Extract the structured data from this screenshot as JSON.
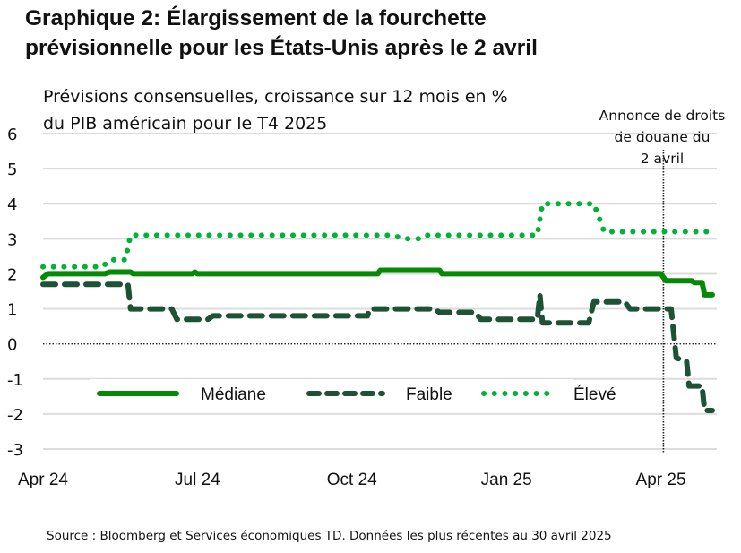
{
  "title_line1": "Graphique 2: Élargissement de la fourchette",
  "title_line2": "prévisionnelle pour les États-Unis après le 2 avril",
  "subtitle_line1": "Prévisions consensuelles, croissance sur 12 mois en %",
  "subtitle_line2": "du PIB américain pour le T4 2025",
  "annotation": [
    "Annonce de droits",
    "de douane du",
    "2 avril"
  ],
  "source": "Source : Bloomberg et Services économiques TD. Données les plus récentes au 30 avril 2025",
  "chart_data": {
    "type": "line",
    "title": "Graphique 2: Élargissement de la fourchette prévisionnelle pour les États-Unis après le 2 avril",
    "subtitle": "Prévisions consensuelles, croissance sur 12 mois en % du PIB américain pour le T4 2025",
    "xlabel": "",
    "ylabel": "",
    "ylim": [
      -3,
      6
    ],
    "yticks": [
      "6",
      "5",
      "4",
      "3",
      "2",
      "1",
      "0",
      "-1",
      "-2",
      "-3"
    ],
    "xlim_months_from_apr24": [
      0,
      13
    ],
    "xticks": [
      {
        "label": "Apr 24",
        "m": 0
      },
      {
        "label": "Jul 24",
        "m": 3
      },
      {
        "label": "Oct 24",
        "m": 6
      },
      {
        "label": "Jan 25",
        "m": 9
      },
      {
        "label": "Apr 25",
        "m": 12
      }
    ],
    "grid": true,
    "legend_position": "bottom-left inside plot",
    "vline": {
      "m": 12.05,
      "label": "Annonce de droits de douane du 2 avril"
    },
    "zero_line": true,
    "series": [
      {
        "name": "Médiane",
        "style": "solid",
        "color": "#068a06",
        "points": [
          [
            0,
            1.9
          ],
          [
            0.1,
            2.0
          ],
          [
            1.2,
            2.0
          ],
          [
            1.3,
            2.05
          ],
          [
            1.7,
            2.05
          ],
          [
            1.75,
            2.0
          ],
          [
            2.9,
            2.0
          ],
          [
            2.95,
            2.05
          ],
          [
            3.0,
            2.0
          ],
          [
            6.5,
            2.0
          ],
          [
            6.55,
            2.1
          ],
          [
            7.7,
            2.1
          ],
          [
            7.75,
            2.0
          ],
          [
            12.0,
            2.0
          ],
          [
            12.1,
            1.8
          ],
          [
            12.6,
            1.8
          ],
          [
            12.65,
            1.75
          ],
          [
            12.8,
            1.75
          ],
          [
            12.85,
            1.4
          ],
          [
            13.0,
            1.4
          ]
        ]
      },
      {
        "name": "Faible",
        "style": "dashed",
        "color": "#1d5236",
        "points": [
          [
            0,
            1.7
          ],
          [
            1.65,
            1.7
          ],
          [
            1.7,
            1.0
          ],
          [
            2.5,
            1.0
          ],
          [
            2.6,
            0.7
          ],
          [
            3.2,
            0.7
          ],
          [
            3.3,
            0.8
          ],
          [
            6.3,
            0.8
          ],
          [
            6.35,
            1.0
          ],
          [
            7.6,
            1.0
          ],
          [
            7.7,
            0.9
          ],
          [
            8.4,
            0.9
          ],
          [
            8.5,
            0.7
          ],
          [
            9.6,
            0.7
          ],
          [
            9.65,
            1.4
          ],
          [
            9.7,
            0.6
          ],
          [
            10.6,
            0.6
          ],
          [
            10.7,
            1.2
          ],
          [
            11.3,
            1.2
          ],
          [
            11.4,
            1.0
          ],
          [
            12.2,
            1.0
          ],
          [
            12.3,
            -0.4
          ],
          [
            12.5,
            -0.5
          ],
          [
            12.55,
            -1.2
          ],
          [
            12.8,
            -1.2
          ],
          [
            12.85,
            -1.9
          ],
          [
            13.0,
            -1.9
          ]
        ]
      },
      {
        "name": "Élevé",
        "style": "dotted",
        "color": "#00b336",
        "points": [
          [
            0,
            2.2
          ],
          [
            1.15,
            2.2
          ],
          [
            1.3,
            2.4
          ],
          [
            1.6,
            2.4
          ],
          [
            1.7,
            3.1
          ],
          [
            6.8,
            3.1
          ],
          [
            7.0,
            3.0
          ],
          [
            7.3,
            3.0
          ],
          [
            7.4,
            3.1
          ],
          [
            9.6,
            3.1
          ],
          [
            9.7,
            4.0
          ],
          [
            10.7,
            4.0
          ],
          [
            10.9,
            3.2
          ],
          [
            13.0,
            3.2
          ]
        ]
      }
    ]
  }
}
